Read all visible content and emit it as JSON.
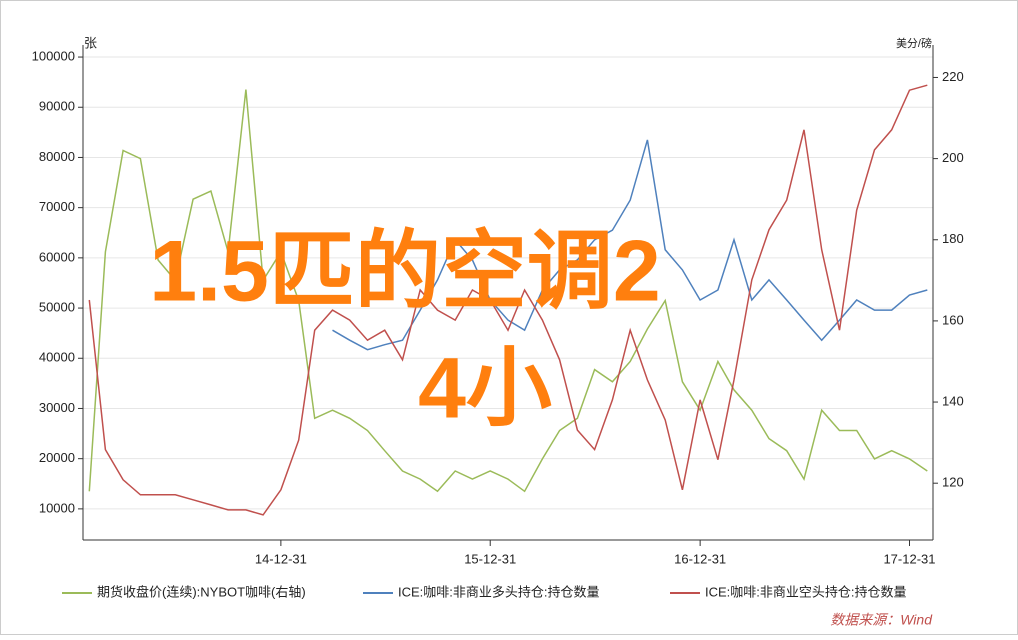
{
  "chart_data": {
    "type": "line",
    "left_unit": "张",
    "right_unit": "美分/磅",
    "x": [
      "2014-01-31",
      "2014-02-28",
      "2014-03-31",
      "2014-04-30",
      "2014-05-31",
      "2014-06-30",
      "2014-07-31",
      "2014-08-31",
      "2014-09-30",
      "2014-10-31",
      "2014-11-30",
      "2014-12-31",
      "2015-01-31",
      "2015-02-28",
      "2015-03-31",
      "2015-04-30",
      "2015-05-31",
      "2015-06-30",
      "2015-07-31",
      "2015-08-31",
      "2015-09-30",
      "2015-10-31",
      "2015-11-30",
      "2015-12-31",
      "2016-01-31",
      "2016-02-29",
      "2016-03-31",
      "2016-04-30",
      "2016-05-31",
      "2016-06-30",
      "2016-07-31",
      "2016-08-31",
      "2016-09-30",
      "2016-10-31",
      "2016-11-30",
      "2016-12-31",
      "2017-01-31",
      "2017-02-28",
      "2017-03-31",
      "2017-04-30",
      "2017-05-31",
      "2017-06-30",
      "2017-07-31",
      "2017-08-31",
      "2017-09-30",
      "2017-10-31",
      "2017-11-30",
      "2017-12-31",
      "2018-01-31"
    ],
    "xlim": [
      "2014-01-20",
      "2018-02-10"
    ],
    "xticks": [
      {
        "value": "2014-12-31",
        "label": "14-12-31"
      },
      {
        "value": "2015-12-31",
        "label": "15-12-31"
      },
      {
        "value": "2016-12-31",
        "label": "16-12-31"
      },
      {
        "value": "2017-12-31",
        "label": "17-12-31"
      }
    ],
    "ylim": [
      3800,
      102400
    ],
    "yticks": [
      10000,
      20000,
      30000,
      40000,
      50000,
      60000,
      70000,
      80000,
      90000,
      100000
    ],
    "y2lim": [
      106,
      228
    ],
    "y2ticks": [
      120,
      140,
      160,
      180,
      200,
      220
    ],
    "grid": true,
    "series": [
      {
        "name": "期货收盘价(连续):NYBOT咖啡(右轴)",
        "color": "#9bbb59",
        "axis": "y2",
        "values": [
          118,
          177,
          202,
          200,
          175,
          170,
          190,
          192,
          177,
          217,
          170,
          177,
          165,
          136,
          138,
          136,
          133,
          128,
          123,
          121,
          118,
          123,
          121,
          123,
          121,
          118,
          126,
          133,
          136,
          148,
          145,
          150,
          158,
          165,
          145,
          138,
          150,
          143,
          138,
          131,
          128,
          121,
          138,
          133,
          133,
          126,
          128,
          126,
          123
        ]
      },
      {
        "name": "ICE:咖啡:非商业多头持仓:持仓数量",
        "color": "#4f81bd",
        "values": [
          null,
          null,
          null,
          null,
          null,
          null,
          null,
          null,
          null,
          null,
          null,
          null,
          null,
          null,
          45600,
          43600,
          41700,
          42700,
          43600,
          49600,
          55600,
          63600,
          59600,
          51600,
          47600,
          45600,
          53600,
          57600,
          59600,
          63600,
          65500,
          71500,
          83500,
          61600,
          57600,
          51600,
          53600,
          63600,
          51600,
          55600,
          51600,
          47600,
          43600,
          47600,
          51600,
          49600,
          49600,
          52600,
          53600
        ]
      },
      {
        "name": "ICE:咖啡:非商业空头持仓:持仓数量",
        "color": "#c0504d",
        "values": [
          51600,
          21800,
          15800,
          12800,
          12800,
          12800,
          11800,
          10800,
          9800,
          9800,
          8800,
          13800,
          23700,
          45600,
          49600,
          47600,
          43600,
          45600,
          39700,
          53600,
          49600,
          47600,
          53600,
          51600,
          45600,
          53600,
          47600,
          39700,
          25700,
          21800,
          31700,
          45600,
          35700,
          27700,
          13800,
          31700,
          19800,
          35700,
          55600,
          65600,
          71500,
          85500,
          61600,
          45600,
          69500,
          81500,
          85500,
          93400,
          94400
        ]
      }
    ],
    "overlay_text": [
      "1.5匹的空调2",
      "4小"
    ],
    "source": "数据来源：Wind"
  }
}
